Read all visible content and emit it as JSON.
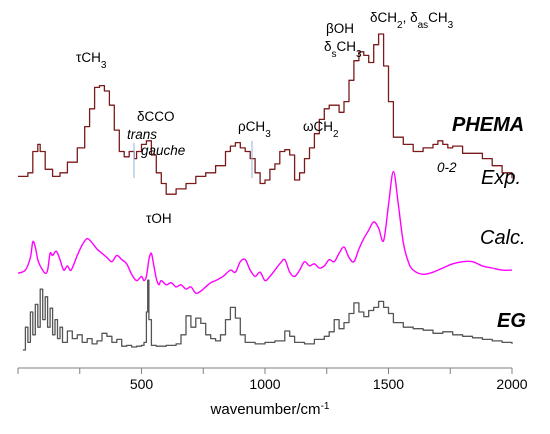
{
  "chart_data": {
    "type": "line",
    "xlabel": "wavenumber/cm",
    "xlabel_sup": "-1",
    "xlim": [
      0,
      2000
    ],
    "x_ticks": [
      500,
      1000,
      1500,
      2000
    ],
    "x_tick_labels": [
      "500",
      "1000",
      "1500",
      "2000"
    ],
    "grid": false,
    "legend": "none",
    "series": [
      {
        "name": "Exp.",
        "color": "#7b1a1a",
        "step": true,
        "x": [
          0,
          40,
          60,
          80,
          90,
          110,
          140,
          170,
          200,
          240,
          270,
          290,
          310,
          330,
          350,
          370,
          390,
          410,
          430,
          450,
          470,
          480,
          500,
          520,
          540,
          560,
          580,
          600,
          640,
          680,
          720,
          760,
          800,
          840,
          860,
          880,
          900,
          920,
          940,
          960,
          980,
          1000,
          1020,
          1040,
          1060,
          1080,
          1100,
          1120,
          1140,
          1160,
          1180,
          1200,
          1220,
          1240,
          1260,
          1280,
          1300,
          1320,
          1340,
          1360,
          1380,
          1400,
          1420,
          1440,
          1460,
          1480,
          1500,
          1520,
          1560,
          1600,
          1640,
          1680,
          1700,
          1720,
          1740,
          1760,
          1800,
          1840,
          1880,
          1920,
          1960,
          2000
        ],
        "y": [
          0.2,
          0.22,
          0.34,
          0.38,
          0.34,
          0.24,
          0.2,
          0.22,
          0.28,
          0.36,
          0.48,
          0.58,
          0.7,
          0.71,
          0.68,
          0.6,
          0.46,
          0.34,
          0.31,
          0.34,
          0.3,
          0.34,
          0.38,
          0.4,
          0.32,
          0.22,
          0.16,
          0.1,
          0.13,
          0.16,
          0.2,
          0.22,
          0.26,
          0.34,
          0.37,
          0.39,
          0.36,
          0.34,
          0.3,
          0.22,
          0.16,
          0.18,
          0.24,
          0.27,
          0.34,
          0.35,
          0.32,
          0.18,
          0.22,
          0.3,
          0.36,
          0.44,
          0.52,
          0.58,
          0.6,
          0.6,
          0.56,
          0.62,
          0.74,
          0.85,
          0.9,
          0.88,
          0.84,
          0.94,
          1.0,
          0.82,
          0.62,
          0.42,
          0.38,
          0.34,
          0.36,
          0.38,
          0.4,
          0.38,
          0.36,
          0.37,
          0.33,
          0.33,
          0.3,
          0.26,
          0.22,
          0.19
        ]
      },
      {
        "name": "Calc.",
        "color": "#ff00ff",
        "step": false,
        "x": [
          0,
          30,
          50,
          60,
          70,
          80,
          90,
          100,
          110,
          120,
          130,
          140,
          155,
          170,
          185,
          200,
          215,
          240,
          260,
          280,
          300,
          320,
          340,
          360,
          380,
          400,
          420,
          440,
          460,
          480,
          500,
          510,
          520,
          530,
          540,
          550,
          560,
          570,
          580,
          600,
          620,
          640,
          660,
          680,
          700,
          720,
          740,
          760,
          780,
          800,
          830,
          860,
          880,
          900,
          920,
          940,
          960,
          980,
          1000,
          1020,
          1040,
          1060,
          1080,
          1100,
          1120,
          1140,
          1160,
          1180,
          1200,
          1220,
          1240,
          1260,
          1280,
          1300,
          1320,
          1340,
          1360,
          1380,
          1400,
          1420,
          1440,
          1460,
          1480,
          1500,
          1520,
          1540,
          1560,
          1580,
          1600,
          1640,
          1680,
          1720,
          1760,
          1800,
          1840,
          1880,
          1920,
          1960,
          2000
        ],
        "y": [
          -0.05,
          -0.02,
          0.1,
          0.25,
          0.2,
          0.08,
          0.02,
          -0.02,
          -0.05,
          -0.02,
          0.14,
          0.12,
          0.16,
          0.08,
          -0.02,
          0.02,
          -0.02,
          0.12,
          0.22,
          0.28,
          0.24,
          0.18,
          0.14,
          0.1,
          0.06,
          0.12,
          0.08,
          0.04,
          -0.06,
          -0.12,
          -0.08,
          -0.12,
          -0.08,
          0.08,
          0.14,
          0.02,
          -0.1,
          -0.16,
          -0.12,
          -0.16,
          -0.14,
          -0.18,
          -0.16,
          -0.2,
          -0.18,
          -0.24,
          -0.22,
          -0.18,
          -0.14,
          -0.12,
          -0.08,
          -0.02,
          -0.04,
          0.06,
          0.08,
          -0.02,
          -0.08,
          -0.04,
          -0.12,
          -0.08,
          -0.02,
          0.04,
          0.08,
          -0.04,
          -0.08,
          -0.02,
          0.06,
          0.02,
          0.04,
          0.0,
          0.02,
          0.08,
          0.06,
          0.14,
          0.2,
          0.1,
          0.06,
          0.18,
          0.28,
          0.36,
          0.44,
          0.38,
          0.26,
          0.6,
          0.92,
          0.6,
          0.24,
          0.06,
          -0.02,
          -0.06,
          -0.04,
          0.0,
          0.04,
          0.06,
          0.06,
          0.02,
          0.0,
          -0.02,
          -0.02
        ]
      },
      {
        "name": "EG",
        "color": "#555555",
        "step": true,
        "x": [
          20,
          30,
          40,
          50,
          60,
          70,
          80,
          90,
          100,
          110,
          120,
          130,
          140,
          150,
          160,
          170,
          180,
          200,
          220,
          240,
          260,
          280,
          300,
          320,
          340,
          360,
          380,
          400,
          420,
          440,
          460,
          480,
          500,
          510,
          520,
          525,
          530,
          540,
          560,
          600,
          640,
          660,
          680,
          700,
          720,
          740,
          760,
          780,
          800,
          820,
          840,
          860,
          880,
          900,
          920,
          960,
          1000,
          1040,
          1080,
          1100,
          1120,
          1160,
          1200,
          1240,
          1260,
          1280,
          1300,
          1320,
          1340,
          1360,
          1380,
          1400,
          1420,
          1440,
          1460,
          1480,
          1500,
          1520,
          1560,
          1600,
          1640,
          1680,
          1720,
          1760,
          1800,
          1840,
          1880,
          1920,
          1960,
          2000
        ],
        "y": [
          0.0,
          0.3,
          0.1,
          0.5,
          0.2,
          0.6,
          0.3,
          0.8,
          0.4,
          0.7,
          0.3,
          0.55,
          0.2,
          0.4,
          0.15,
          0.3,
          0.1,
          0.25,
          0.15,
          0.2,
          0.1,
          0.15,
          0.08,
          0.12,
          0.22,
          0.18,
          0.1,
          0.14,
          0.05,
          0.06,
          0.04,
          0.05,
          0.06,
          0.1,
          0.5,
          0.92,
          0.4,
          0.06,
          0.05,
          0.06,
          0.08,
          0.2,
          0.45,
          0.3,
          0.42,
          0.35,
          0.2,
          0.15,
          0.12,
          0.2,
          0.4,
          0.56,
          0.42,
          0.2,
          0.1,
          0.08,
          0.1,
          0.12,
          0.25,
          0.18,
          0.1,
          0.08,
          0.14,
          0.18,
          0.24,
          0.4,
          0.28,
          0.36,
          0.48,
          0.62,
          0.5,
          0.44,
          0.52,
          0.56,
          0.64,
          0.56,
          0.48,
          0.36,
          0.3,
          0.28,
          0.26,
          0.22,
          0.24,
          0.2,
          0.18,
          0.16,
          0.14,
          0.12,
          0.1,
          0.08
        ]
      }
    ],
    "series_labels": {
      "phema": "PHEMA",
      "exp": "Exp.",
      "calc": "Calc.",
      "eg": "EG"
    },
    "annotations": [
      {
        "id": "tau_ch3",
        "html": "&tau;CH<tspan baseline-shift='sub' font-size='10'>3</tspan>",
        "x": 320
      },
      {
        "id": "delta_cco",
        "text": "δCCO",
        "x": 480
      },
      {
        "id": "trans",
        "text": "trans",
        "x": 470
      },
      {
        "id": "gauche",
        "text": "gauche",
        "x": 530
      },
      {
        "id": "tau_oh",
        "text": "τOH",
        "x": 530
      },
      {
        "id": "rho_ch3",
        "text": "ρCH3",
        "x": 950
      },
      {
        "id": "omega_ch2",
        "text": "ωCH2",
        "x": 1250
      },
      {
        "id": "beta_oh",
        "text": "βOH",
        "x": 1370
      },
      {
        "id": "delta_s_ch3",
        "text": "δsCH3",
        "x": 1370
      },
      {
        "id": "delta_ch2_as_ch3",
        "text": "δCH2, δasCH3",
        "x": 1460
      },
      {
        "id": "overtone",
        "text": "0-2",
        "x": 1740
      }
    ]
  }
}
